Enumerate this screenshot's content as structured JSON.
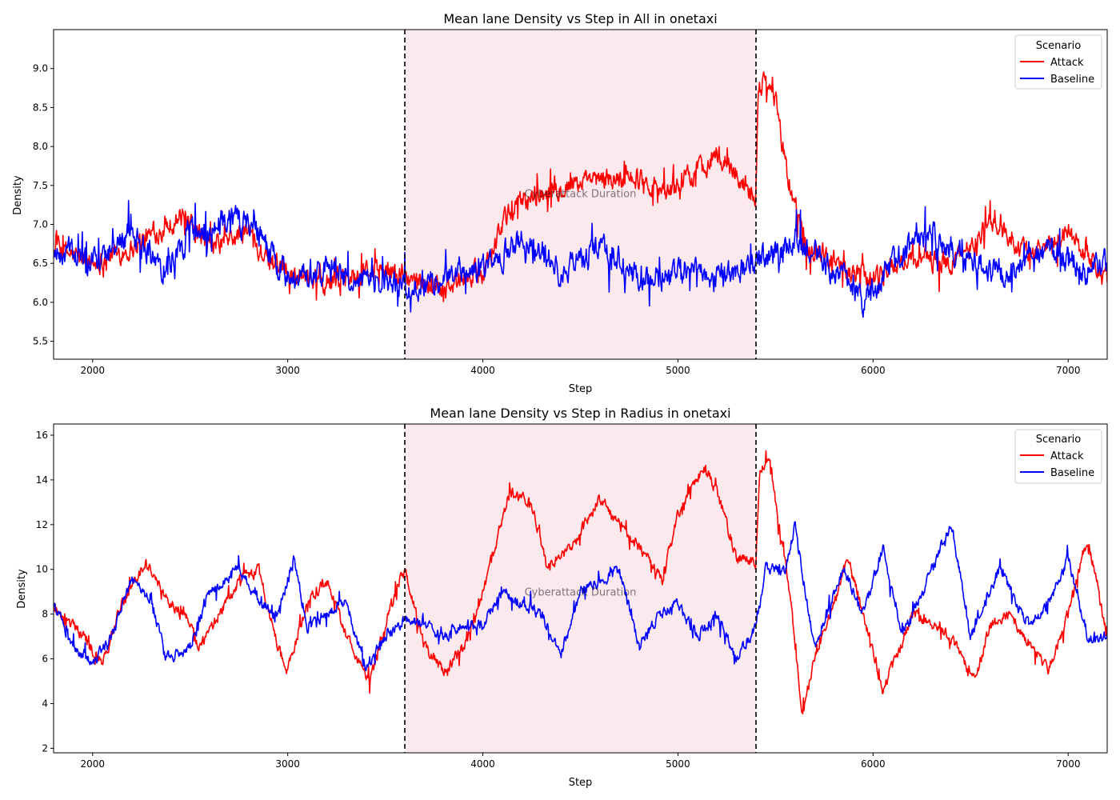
{
  "chart_data": [
    {
      "type": "line",
      "title": "Mean lane Density vs Step in All in onetaxi",
      "xlabel": "Step",
      "ylabel": "Density",
      "xlim": [
        1800,
        7200
      ],
      "ylim": [
        5.27,
        9.5
      ],
      "xticks": [
        2000,
        3000,
        4000,
        5000,
        6000,
        7000
      ],
      "yticks": [
        5.5,
        6.0,
        6.5,
        7.0,
        7.5,
        8.0,
        8.5,
        9.0
      ],
      "ytick_labels": [
        "5.5",
        "6.0",
        "6.5",
        "7.0",
        "7.5",
        "8.0",
        "8.5",
        "9.0"
      ],
      "vlines": [
        3600,
        5400
      ],
      "shaded_span": {
        "x0": 3600,
        "x1": 5400,
        "color": "#fbe9ee",
        "label": "Cyberattack Duration",
        "label_x": 4500,
        "label_y": 7.4
      },
      "legend": {
        "title": "Scenario",
        "position": "top-right",
        "entries": [
          "Attack",
          "Baseline"
        ]
      },
      "series": [
        {
          "name": "Attack",
          "color": "#ff0000",
          "noise": 0.25,
          "x": [
            1800,
            2000,
            2200,
            2450,
            2600,
            2800,
            2950,
            3200,
            3500,
            3650,
            3800,
            4000,
            4100,
            4200,
            4400,
            4600,
            4800,
            4950,
            5100,
            5200,
            5350,
            5400,
            5410,
            5450,
            5500,
            5560,
            5650,
            5800,
            6000,
            6200,
            6400,
            6600,
            6800,
            7000,
            7200
          ],
          "y": [
            6.7,
            6.5,
            6.7,
            7.1,
            6.7,
            6.9,
            6.4,
            6.3,
            6.4,
            6.3,
            6.2,
            6.4,
            7.0,
            7.3,
            7.5,
            7.55,
            7.6,
            7.4,
            7.7,
            7.9,
            7.5,
            7.4,
            8.7,
            8.9,
            8.6,
            7.6,
            6.8,
            6.5,
            6.3,
            6.6,
            6.5,
            7.0,
            6.6,
            6.9,
            6.3
          ]
        },
        {
          "name": "Baseline",
          "color": "#0000ff",
          "noise": 0.3,
          "x": [
            1800,
            2000,
            2200,
            2350,
            2500,
            2700,
            2850,
            3000,
            3200,
            3400,
            3600,
            3800,
            4000,
            4200,
            4400,
            4600,
            4800,
            5000,
            5200,
            5400,
            5600,
            5800,
            5950,
            6100,
            6300,
            6500,
            6700,
            6900,
            7100,
            7200
          ],
          "y": [
            6.7,
            6.5,
            6.9,
            6.4,
            6.9,
            7.1,
            6.9,
            6.3,
            6.4,
            6.3,
            6.2,
            6.3,
            6.4,
            6.8,
            6.4,
            6.7,
            6.3,
            6.4,
            6.3,
            6.5,
            6.8,
            6.4,
            6.0,
            6.5,
            6.9,
            6.5,
            6.4,
            6.7,
            6.4,
            6.5
          ]
        }
      ]
    },
    {
      "type": "line",
      "title": "Mean lane Density vs Step in Radius in onetaxi",
      "xlabel": "Step",
      "ylabel": "Density",
      "xlim": [
        1800,
        7200
      ],
      "ylim": [
        1.8,
        16.5
      ],
      "xticks": [
        2000,
        3000,
        4000,
        5000,
        6000,
        7000
      ],
      "yticks": [
        2,
        4,
        6,
        8,
        10,
        12,
        14,
        16
      ],
      "ytick_labels": [
        "2",
        "4",
        "6",
        "8",
        "10",
        "12",
        "14",
        "16"
      ],
      "vlines": [
        3600,
        5400
      ],
      "shaded_span": {
        "x0": 3600,
        "x1": 5400,
        "color": "#fbe9ee",
        "label": "Cyberattack Duration",
        "label_x": 4500,
        "label_y": 9.0
      },
      "legend": {
        "title": "Scenario",
        "position": "top-right",
        "entries": [
          "Attack",
          "Baseline"
        ]
      },
      "series": [
        {
          "name": "Attack",
          "color": "#ff0000",
          "noise": 0.45,
          "x": [
            1800,
            1950,
            2050,
            2150,
            2270,
            2400,
            2480,
            2550,
            2750,
            2850,
            2950,
            3000,
            3100,
            3200,
            3300,
            3420,
            3550,
            3600,
            3700,
            3800,
            3900,
            4000,
            4140,
            4250,
            4330,
            4450,
            4600,
            4700,
            4800,
            4920,
            5000,
            5130,
            5200,
            5300,
            5400,
            5420,
            5470,
            5500,
            5570,
            5640,
            5700,
            5800,
            5870,
            5950,
            6050,
            6200,
            6400,
            6520,
            6600,
            6700,
            6900,
            7000,
            7100,
            7200
          ],
          "y": [
            8.3,
            7.0,
            5.8,
            8.5,
            10.3,
            8.5,
            7.8,
            6.5,
            9.5,
            10.0,
            6.5,
            5.5,
            8.5,
            9.5,
            7.0,
            5.0,
            9.0,
            10.0,
            6.5,
            5.5,
            6.5,
            9.0,
            13.5,
            13.0,
            10.0,
            11.0,
            13.2,
            12.0,
            11.0,
            9.5,
            12.5,
            14.6,
            13.5,
            10.5,
            10.3,
            14.5,
            14.8,
            13.0,
            9.0,
            3.5,
            6.0,
            8.5,
            10.5,
            8.0,
            4.5,
            8.0,
            7.0,
            5.0,
            7.5,
            8.0,
            5.5,
            8.0,
            11.5,
            7.0
          ]
        },
        {
          "name": "Baseline",
          "color": "#0000ff",
          "noise": 0.45,
          "x": [
            1800,
            1900,
            2000,
            2100,
            2200,
            2300,
            2380,
            2500,
            2600,
            2750,
            2850,
            2950,
            3030,
            3100,
            3200,
            3300,
            3400,
            3500,
            3600,
            3700,
            3800,
            3900,
            4000,
            4100,
            4200,
            4300,
            4400,
            4500,
            4600,
            4700,
            4800,
            4900,
            5000,
            5100,
            5200,
            5300,
            5400,
            5450,
            5550,
            5600,
            5700,
            5850,
            5950,
            6050,
            6150,
            6250,
            6400,
            6500,
            6650,
            6800,
            6900,
            7000,
            7100,
            7200
          ],
          "y": [
            8.5,
            6.5,
            5.8,
            7.0,
            9.5,
            8.5,
            6.0,
            6.5,
            9.0,
            10.0,
            8.5,
            8.0,
            10.5,
            7.5,
            8.0,
            8.5,
            5.5,
            7.0,
            7.8,
            7.5,
            7.0,
            7.5,
            7.5,
            9.0,
            8.5,
            8.0,
            6.2,
            9.0,
            9.5,
            10.0,
            6.5,
            8.0,
            8.5,
            7.0,
            8.0,
            6.0,
            7.5,
            10.0,
            10.0,
            12.0,
            6.5,
            10.0,
            8.0,
            11.0,
            7.0,
            9.0,
            12.0,
            7.0,
            10.0,
            7.5,
            8.5,
            10.5,
            7.0,
            7.0
          ]
        }
      ]
    }
  ]
}
